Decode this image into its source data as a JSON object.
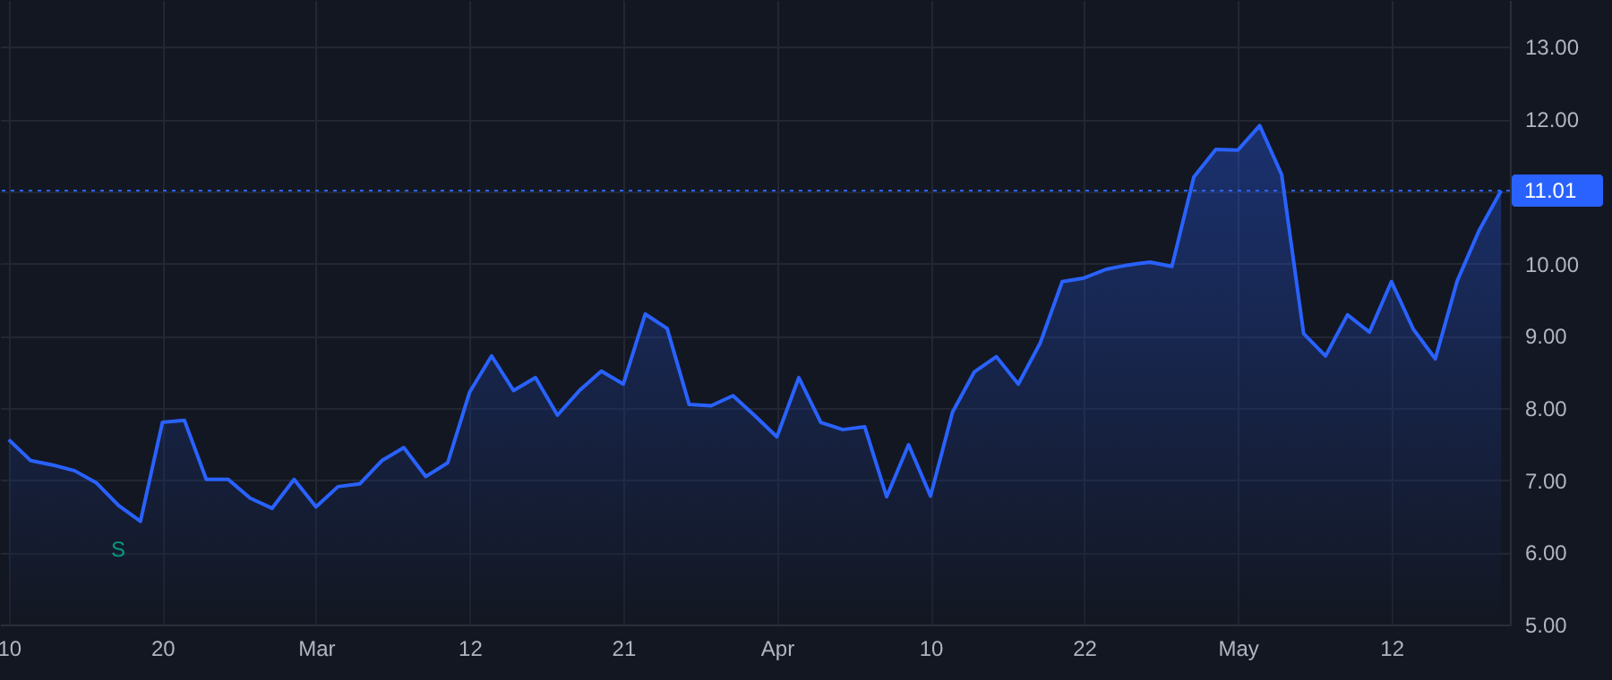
{
  "chart_data": {
    "type": "area",
    "categories": [
      "10",
      null,
      null,
      null,
      null,
      null,
      null,
      "20",
      null,
      null,
      null,
      null,
      null,
      null,
      "Mar",
      null,
      null,
      null,
      null,
      null,
      null,
      "12",
      null,
      null,
      null,
      null,
      null,
      null,
      "21",
      null,
      null,
      null,
      null,
      null,
      null,
      "Apr",
      null,
      null,
      null,
      null,
      null,
      null,
      "10",
      null,
      null,
      null,
      null,
      null,
      null,
      "22",
      null,
      null,
      null,
      null,
      null,
      null,
      "May",
      null,
      null,
      null,
      null,
      null,
      null,
      "12",
      null,
      null,
      null,
      null,
      null
    ],
    "series": [
      {
        "color": "#2962ff",
        "values": [
          7.56,
          7.27,
          7.21,
          7.13,
          6.96,
          6.65,
          6.43,
          7.8,
          7.83,
          7.01,
          7.01,
          6.75,
          6.61,
          7.01,
          6.63,
          6.91,
          6.95,
          7.27,
          7.45,
          7.05,
          7.24,
          8.22,
          8.72,
          8.24,
          8.42,
          7.9,
          8.24,
          8.51,
          8.33,
          9.3,
          9.1,
          8.05,
          8.03,
          8.17,
          7.89,
          7.6,
          8.42,
          7.8,
          7.7,
          7.74,
          6.77,
          7.49,
          6.78,
          7.94,
          8.5,
          8.71,
          8.33,
          8.9,
          9.75,
          9.8,
          9.92,
          9.98,
          10.02,
          9.96,
          11.2,
          11.58,
          11.57,
          11.91,
          11.23,
          9.03,
          8.72,
          9.29,
          9.05,
          9.75,
          9.09,
          8.68,
          9.76,
          10.46,
          11.01
        ]
      }
    ],
    "ylim": [
      5,
      13.65
    ],
    "yticks": [
      {
        "value": 5,
        "label": "5.00"
      },
      {
        "value": 6,
        "label": "6.00"
      },
      {
        "value": 7,
        "label": "7.00"
      },
      {
        "value": 8,
        "label": "8.00"
      },
      {
        "value": 9,
        "label": "9.00"
      },
      {
        "value": 10,
        "label": "10.00"
      },
      {
        "value": 11,
        "label": null
      },
      {
        "value": 12,
        "label": "12.00"
      },
      {
        "value": 13,
        "label": "13.00"
      }
    ],
    "ref_lines": [
      {
        "axis": "y",
        "value": 11.01,
        "label": "11.01",
        "color": "#2962ff",
        "line_style": "dotted"
      }
    ],
    "annotations": [
      "S"
    ],
    "grid": true
  }
}
